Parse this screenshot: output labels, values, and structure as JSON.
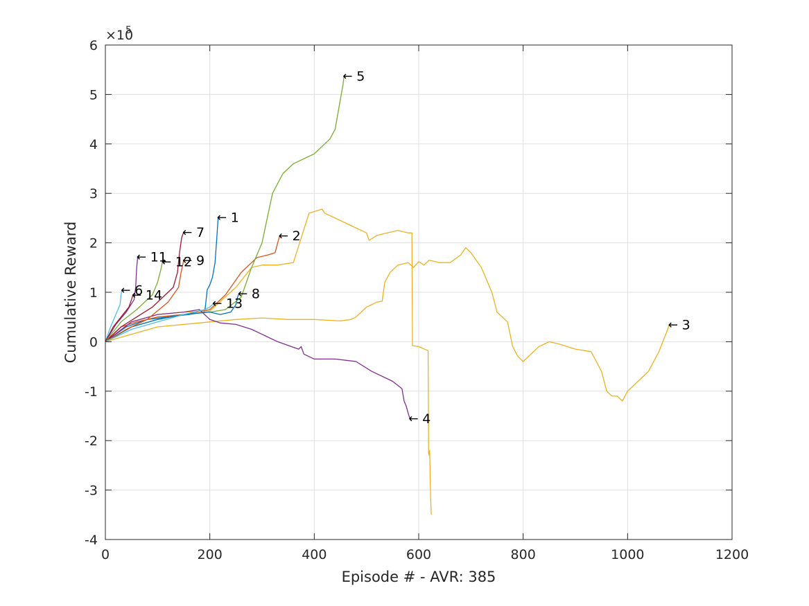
{
  "chart_data": {
    "type": "line",
    "title": "",
    "xlabel": "Episode # - AVR: 385",
    "ylabel": "Cumulative Reward",
    "y_exponent_base": "×10",
    "y_exponent_power": "5",
    "xlim": [
      0,
      1200
    ],
    "ylim": [
      -4,
      6
    ],
    "y_unit_scale": 100000,
    "xticks": [
      0,
      200,
      400,
      600,
      800,
      1000,
      1200
    ],
    "yticks": [
      -4,
      -3,
      -2,
      -1,
      0,
      1,
      2,
      3,
      4,
      5,
      6
    ],
    "grid": true,
    "arrow_glyph": "←",
    "series": [
      {
        "label": "1",
        "color": "#0072bd",
        "x": [
          0,
          40,
          80,
          120,
          160,
          190,
          192,
          195,
          200,
          205,
          210,
          213,
          216
        ],
        "y": [
          0,
          0.3,
          0.45,
          0.5,
          0.55,
          0.6,
          0.75,
          1.05,
          1.15,
          1.3,
          1.6,
          2.05,
          2.52
        ]
      },
      {
        "label": "2",
        "color": "#d95319",
        "x": [
          0,
          30,
          60,
          100,
          150,
          200,
          230,
          260,
          290,
          310,
          325,
          330,
          334
        ],
        "y": [
          0,
          0.3,
          0.4,
          0.5,
          0.55,
          0.65,
          0.95,
          1.4,
          1.7,
          1.75,
          1.8,
          2.0,
          2.15
        ]
      },
      {
        "label": "3",
        "color": "#edb120",
        "x": [
          0,
          50,
          100,
          150,
          200,
          250,
          280,
          300,
          330,
          360,
          390,
          415,
          420,
          440,
          470,
          500,
          505,
          520,
          540,
          560,
          580,
          587,
          588,
          600,
          618,
          619,
          620,
          621,
          622,
          623,
          624
        ],
        "y": [
          0,
          0.4,
          0.55,
          0.6,
          0.62,
          1.1,
          1.5,
          1.55,
          1.55,
          1.6,
          2.6,
          2.68,
          2.6,
          2.5,
          2.35,
          2.2,
          2.05,
          2.15,
          2.2,
          2.25,
          2.2,
          2.2,
          -0.08,
          -0.1,
          -0.18,
          -2.25,
          -2.3,
          -2.2,
          -2.8,
          -3.2,
          -3.5
        ]
      },
      {
        "label": "3",
        "color": "#edb120",
        "x": [
          0,
          100,
          200,
          250,
          300,
          350,
          400,
          450,
          470,
          480,
          500,
          520,
          530,
          535,
          545,
          560,
          580,
          590,
          600,
          610,
          620,
          640,
          660,
          680,
          690,
          700,
          720,
          740,
          750,
          770,
          780,
          790,
          800,
          810,
          830,
          850,
          870,
          900,
          930,
          950,
          960,
          970,
          980,
          990,
          1000,
          1020,
          1040,
          1060,
          1075,
          1080
        ],
        "y": [
          0,
          0.3,
          0.4,
          0.45,
          0.48,
          0.45,
          0.45,
          0.42,
          0.45,
          0.5,
          0.7,
          0.8,
          0.82,
          1.2,
          1.4,
          1.55,
          1.6,
          1.5,
          1.62,
          1.55,
          1.65,
          1.6,
          1.6,
          1.75,
          1.9,
          1.8,
          1.5,
          1.0,
          0.6,
          0.4,
          -0.1,
          -0.3,
          -0.4,
          -0.3,
          -0.1,
          0.0,
          -0.05,
          -0.15,
          -0.2,
          -0.6,
          -1.0,
          -1.1,
          -1.1,
          -1.2,
          -1.0,
          -0.8,
          -0.6,
          -0.2,
          0.2,
          0.35
        ]
      },
      {
        "label": "4",
        "color": "#7e2f8e",
        "x": [
          0,
          50,
          100,
          150,
          180,
          200,
          220,
          250,
          280,
          300,
          330,
          370,
          375,
          380,
          400,
          440,
          480,
          510,
          550,
          568,
          572,
          576,
          580,
          583
        ],
        "y": [
          0,
          0.4,
          0.55,
          0.6,
          0.65,
          0.45,
          0.38,
          0.35,
          0.25,
          0.15,
          0.0,
          -0.15,
          -0.1,
          -0.25,
          -0.35,
          -0.35,
          -0.4,
          -0.6,
          -0.8,
          -0.95,
          -1.2,
          -1.3,
          -1.45,
          -1.55
        ]
      },
      {
        "label": "5",
        "color": "#77ac30",
        "x": [
          0,
          50,
          100,
          150,
          200,
          230,
          260,
          280,
          300,
          310,
          320,
          340,
          360,
          380,
          400,
          420,
          430,
          440,
          445,
          450,
          455,
          457
        ],
        "y": [
          0,
          0.3,
          0.45,
          0.55,
          0.6,
          0.65,
          0.9,
          1.5,
          2.0,
          2.5,
          3.0,
          3.4,
          3.6,
          3.7,
          3.8,
          4.0,
          4.1,
          4.3,
          4.6,
          4.9,
          5.2,
          5.38
        ]
      },
      {
        "label": "6",
        "color": "#4dbeee",
        "x": [
          0,
          10,
          20,
          28,
          30,
          32
        ],
        "y": [
          0,
          0.3,
          0.55,
          0.75,
          0.95,
          1.05
        ]
      },
      {
        "label": "7",
        "color": "#a2142f",
        "x": [
          0,
          30,
          60,
          90,
          110,
          130,
          138,
          142,
          146,
          150
        ],
        "y": [
          0,
          0.3,
          0.5,
          0.7,
          0.9,
          1.1,
          1.4,
          1.8,
          2.1,
          2.22
        ]
      },
      {
        "label": "8",
        "color": "#0072bd",
        "x": [
          0,
          50,
          100,
          150,
          200,
          220,
          240,
          250,
          253,
          256
        ],
        "y": [
          0,
          0.3,
          0.45,
          0.55,
          0.6,
          0.55,
          0.6,
          0.75,
          0.9,
          0.98
        ]
      },
      {
        "label": "9",
        "color": "#d95319",
        "x": [
          0,
          40,
          80,
          120,
          140,
          145,
          150
        ],
        "y": [
          0,
          0.25,
          0.45,
          0.8,
          1.1,
          1.4,
          1.65
        ]
      },
      {
        "label": "11",
        "color": "#7e2f8e",
        "x": [
          0,
          20,
          40,
          55,
          58,
          60,
          62
        ],
        "y": [
          0,
          0.35,
          0.6,
          0.85,
          1.1,
          1.5,
          1.72
        ]
      },
      {
        "label": "12",
        "color": "#77ac30",
        "x": [
          0,
          30,
          60,
          90,
          100,
          106,
          110
        ],
        "y": [
          0,
          0.4,
          0.65,
          0.95,
          1.2,
          1.45,
          1.65
        ]
      },
      {
        "label": "13",
        "color": "#4dbeee",
        "x": [
          0,
          50,
          100,
          150,
          190,
          200,
          205,
          207
        ],
        "y": [
          0,
          0.25,
          0.4,
          0.55,
          0.65,
          0.7,
          0.75,
          0.78
        ]
      },
      {
        "label": "14",
        "color": "#a2142f",
        "x": [
          0,
          15,
          30,
          45,
          50,
          53
        ],
        "y": [
          0,
          0.3,
          0.5,
          0.7,
          0.85,
          0.95
        ]
      }
    ],
    "annotations": [
      {
        "text": "1",
        "x": 216,
        "y": 2.52
      },
      {
        "text": "2",
        "x": 334,
        "y": 2.15
      },
      {
        "text": "3",
        "x": 1080,
        "y": 0.35
      },
      {
        "text": "4",
        "x": 583,
        "y": -1.55
      },
      {
        "text": "5",
        "x": 457,
        "y": 5.38
      },
      {
        "text": "6",
        "x": 32,
        "y": 1.05
      },
      {
        "text": "7",
        "x": 150,
        "y": 2.22
      },
      {
        "text": "8",
        "x": 256,
        "y": 0.98
      },
      {
        "text": "9",
        "x": 150,
        "y": 1.65
      },
      {
        "text": "11",
        "x": 62,
        "y": 1.72
      },
      {
        "text": "12",
        "x": 110,
        "y": 1.62
      },
      {
        "text": "13",
        "x": 207,
        "y": 0.78
      },
      {
        "text": "14",
        "x": 53,
        "y": 0.95
      }
    ]
  }
}
